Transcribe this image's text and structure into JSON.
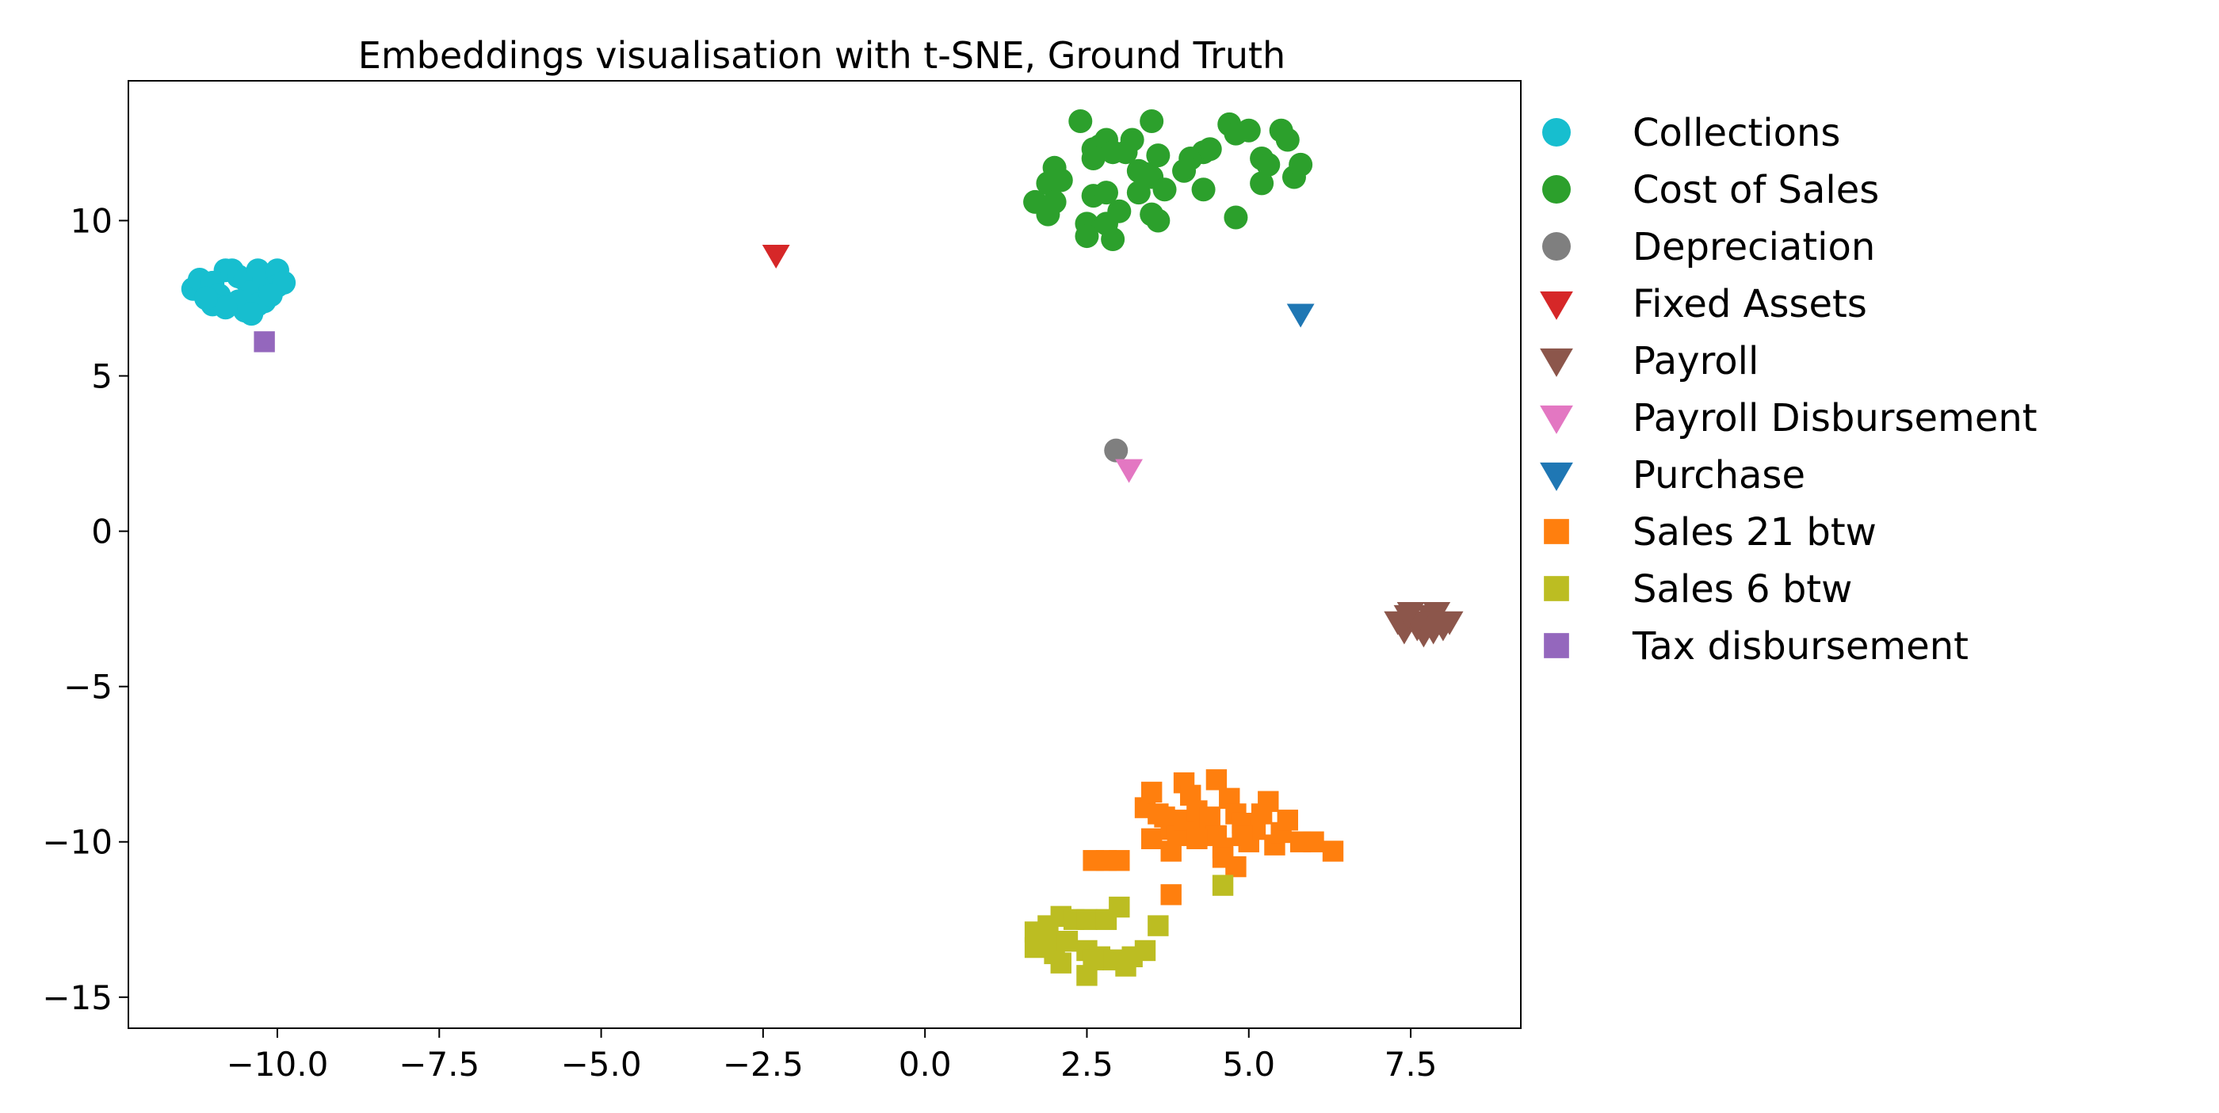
{
  "chart_data": {
    "type": "scatter",
    "title": "Embeddings visualisation with t-SNE, Ground Truth",
    "xlabel": "",
    "ylabel": "",
    "xlim": [
      -12.3,
      9.2
    ],
    "ylim": [
      -16.0,
      14.5
    ],
    "x_ticks": [
      -10.0,
      -7.5,
      -5.0,
      -2.5,
      0.0,
      2.5,
      5.0,
      7.5
    ],
    "x_tick_labels": [
      "−10.0",
      "−7.5",
      "−5.0",
      "−2.5",
      "0.0",
      "2.5",
      "5.0",
      "7.5"
    ],
    "y_ticks": [
      -15,
      -10,
      -5,
      0,
      5,
      10
    ],
    "y_tick_labels": [
      "−15",
      "−10",
      "−5",
      "0",
      "5",
      "10"
    ],
    "grid": false,
    "legend_position": "outside-right",
    "series": [
      {
        "name": "Collections",
        "marker": "circle",
        "color": "#17becf",
        "points": [
          [
            -11.3,
            7.8
          ],
          [
            -11.2,
            8.1
          ],
          [
            -11.0,
            8.0
          ],
          [
            -10.9,
            7.6
          ],
          [
            -10.8,
            8.4
          ],
          [
            -10.7,
            8.4
          ],
          [
            -10.6,
            8.2
          ],
          [
            -10.5,
            8.1
          ],
          [
            -10.4,
            7.7
          ],
          [
            -10.3,
            8.4
          ],
          [
            -10.2,
            8.1
          ],
          [
            -10.1,
            7.8
          ],
          [
            -10.0,
            8.4
          ],
          [
            -10.0,
            7.9
          ],
          [
            -9.9,
            8.0
          ],
          [
            -10.2,
            7.4
          ],
          [
            -10.5,
            7.1
          ],
          [
            -10.6,
            7.4
          ],
          [
            -11.0,
            7.3
          ],
          [
            -10.8,
            7.2
          ],
          [
            -10.3,
            7.3
          ],
          [
            -10.1,
            7.6
          ],
          [
            -11.1,
            7.5
          ],
          [
            -10.4,
            7.0
          ]
        ]
      },
      {
        "name": "Cost of Sales",
        "marker": "circle",
        "color": "#2ca02c",
        "points": [
          [
            1.7,
            10.6
          ],
          [
            1.9,
            11.2
          ],
          [
            2.0,
            11.7
          ],
          [
            2.1,
            11.3
          ],
          [
            1.9,
            10.2
          ],
          [
            2.0,
            10.6
          ],
          [
            2.4,
            13.2
          ],
          [
            2.6,
            12.3
          ],
          [
            2.7,
            12.4
          ],
          [
            2.8,
            12.6
          ],
          [
            2.9,
            12.2
          ],
          [
            2.6,
            10.8
          ],
          [
            2.8,
            10.9
          ],
          [
            2.5,
            9.9
          ],
          [
            2.5,
            9.5
          ],
          [
            2.8,
            9.9
          ],
          [
            2.9,
            9.4
          ],
          [
            3.0,
            10.3
          ],
          [
            3.1,
            12.2
          ],
          [
            3.2,
            12.6
          ],
          [
            3.3,
            11.6
          ],
          [
            3.4,
            11.5
          ],
          [
            3.5,
            13.2
          ],
          [
            3.5,
            11.4
          ],
          [
            3.6,
            12.1
          ],
          [
            3.5,
            10.2
          ],
          [
            3.6,
            10.0
          ],
          [
            3.7,
            11.0
          ],
          [
            4.0,
            11.6
          ],
          [
            4.1,
            12.0
          ],
          [
            4.3,
            12.2
          ],
          [
            4.4,
            12.3
          ],
          [
            4.3,
            11.0
          ],
          [
            4.7,
            13.1
          ],
          [
            4.8,
            12.8
          ],
          [
            5.0,
            12.9
          ],
          [
            5.2,
            12.0
          ],
          [
            5.3,
            11.8
          ],
          [
            5.2,
            11.2
          ],
          [
            5.5,
            12.9
          ],
          [
            5.6,
            12.6
          ],
          [
            5.7,
            11.4
          ],
          [
            5.8,
            11.8
          ],
          [
            4.8,
            10.1
          ],
          [
            3.3,
            10.9
          ],
          [
            2.6,
            12.0
          ]
        ]
      },
      {
        "name": "Depreciation",
        "marker": "circle",
        "color": "#7f7f7f",
        "points": [
          [
            2.95,
            2.6
          ]
        ]
      },
      {
        "name": "Fixed Assets",
        "marker": "triangle-down",
        "color": "#d62728",
        "points": [
          [
            -2.3,
            8.9
          ]
        ]
      },
      {
        "name": "Payroll",
        "marker": "triangle-down",
        "color": "#8c564b",
        "points": [
          [
            7.3,
            -2.9
          ],
          [
            7.4,
            -3.2
          ],
          [
            7.5,
            -2.6
          ],
          [
            7.6,
            -3.1
          ],
          [
            7.7,
            -3.3
          ],
          [
            7.8,
            -2.7
          ],
          [
            7.9,
            -2.6
          ],
          [
            8.0,
            -3.1
          ],
          [
            8.1,
            -2.9
          ],
          [
            7.6,
            -2.9
          ],
          [
            7.85,
            -3.2
          ],
          [
            7.45,
            -2.7
          ]
        ]
      },
      {
        "name": "Payroll Disbursement",
        "marker": "triangle-down",
        "color": "#e377c2",
        "points": [
          [
            3.15,
            2.0
          ]
        ]
      },
      {
        "name": "Purchase",
        "marker": "triangle-down",
        "color": "#1f77b4",
        "points": [
          [
            5.8,
            7.0
          ]
        ]
      },
      {
        "name": "Sales 21 btw",
        "marker": "square",
        "color": "#ff7f0e",
        "points": [
          [
            3.4,
            -8.9
          ],
          [
            3.5,
            -8.4
          ],
          [
            3.5,
            -9.9
          ],
          [
            3.7,
            -9.2
          ],
          [
            3.8,
            -9.6
          ],
          [
            3.8,
            -10.3
          ],
          [
            3.9,
            -9.8
          ],
          [
            4.0,
            -8.1
          ],
          [
            4.1,
            -8.5
          ],
          [
            4.0,
            -9.3
          ],
          [
            4.2,
            -9.0
          ],
          [
            4.3,
            -9.6
          ],
          [
            4.4,
            -9.2
          ],
          [
            4.5,
            -8.0
          ],
          [
            4.5,
            -9.8
          ],
          [
            4.6,
            -10.2
          ],
          [
            4.7,
            -8.6
          ],
          [
            4.8,
            -9.1
          ],
          [
            4.8,
            -10.8
          ],
          [
            4.9,
            -9.4
          ],
          [
            5.0,
            -10.0
          ],
          [
            5.1,
            -9.6
          ],
          [
            5.2,
            -9.1
          ],
          [
            5.3,
            -8.7
          ],
          [
            5.4,
            -10.1
          ],
          [
            5.5,
            -9.7
          ],
          [
            5.6,
            -9.3
          ],
          [
            5.8,
            -10.0
          ],
          [
            6.0,
            -10.0
          ],
          [
            6.3,
            -10.3
          ],
          [
            2.6,
            -10.6
          ],
          [
            2.8,
            -10.6
          ],
          [
            3.0,
            -10.6
          ],
          [
            3.8,
            -11.7
          ],
          [
            4.2,
            -9.9
          ],
          [
            4.6,
            -10.5
          ],
          [
            3.6,
            -9.1
          ],
          [
            4.9,
            -9.8
          ]
        ]
      },
      {
        "name": "Sales 6 btw",
        "marker": "square",
        "color": "#bcbd22",
        "points": [
          [
            1.7,
            -12.9
          ],
          [
            1.7,
            -13.4
          ],
          [
            1.9,
            -12.7
          ],
          [
            1.9,
            -13.2
          ],
          [
            2.0,
            -13.6
          ],
          [
            2.1,
            -12.4
          ],
          [
            2.1,
            -13.9
          ],
          [
            2.3,
            -12.5
          ],
          [
            2.5,
            -12.5
          ],
          [
            2.5,
            -13.5
          ],
          [
            2.5,
            -14.3
          ],
          [
            2.7,
            -13.7
          ],
          [
            2.8,
            -12.5
          ],
          [
            2.9,
            -13.8
          ],
          [
            3.0,
            -12.1
          ],
          [
            3.1,
            -14.0
          ],
          [
            3.2,
            -13.7
          ],
          [
            3.4,
            -13.5
          ],
          [
            3.6,
            -12.7
          ],
          [
            4.6,
            -11.4
          ],
          [
            2.2,
            -13.2
          ],
          [
            2.6,
            -13.8
          ]
        ]
      },
      {
        "name": "Tax disbursement",
        "marker": "square",
        "color": "#9467bd",
        "points": [
          [
            -10.2,
            6.1
          ]
        ]
      }
    ]
  }
}
